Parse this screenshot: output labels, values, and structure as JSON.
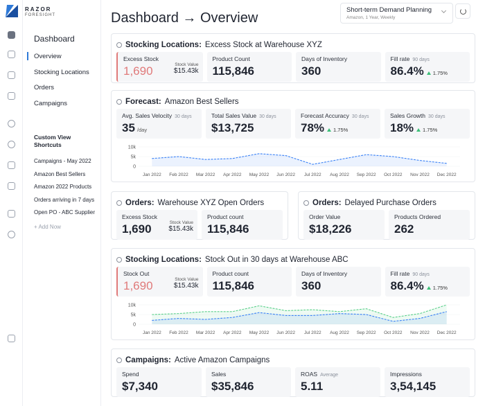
{
  "brand": {
    "name": "RAZOR",
    "sub": "FORESIGHT"
  },
  "nav": {
    "title": "Dashboard",
    "items": [
      "Overview",
      "Stocking Locations",
      "Orders",
      "Campaigns"
    ],
    "active": 0,
    "custom_title": "Custom View Shortcuts",
    "shortcuts": [
      "Campaigns - May 2022",
      "Amazon Best Sellers",
      "Amazon 2022 Products",
      "Orders arriving in 7 days",
      "Open PO - ABC Supplier"
    ],
    "add": "+ Add Now"
  },
  "header": {
    "title": "Dashboard → Overview",
    "selector": {
      "title": "Short-term Demand Planning",
      "subtitle": "Amazon, 1 Year, Weekly"
    }
  },
  "sections": [
    {
      "heading": "Stocking Locations:",
      "subheading": "Excess Stock at Warehouse XYZ",
      "cards": [
        {
          "label": "Excess Stock",
          "value": "1,690",
          "alert": true,
          "side_label": "Stock Value",
          "side_value": "$15.43k"
        },
        {
          "label": "Product Count",
          "value": "115,846"
        },
        {
          "label": "Days of Inventory",
          "value": "360"
        },
        {
          "label": "Fill rate",
          "note": "90 days",
          "value": "86.4%",
          "delta": "1.75%"
        }
      ]
    },
    {
      "heading": "Forecast:",
      "subheading": "Amazon Best Sellers",
      "cards": [
        {
          "label": "Avg. Sales Velocity",
          "note": "30 days",
          "value": "35",
          "unit": "/day"
        },
        {
          "label": "Total Sales Value",
          "note": "30 days",
          "value": "$13,725"
        },
        {
          "label": "Forecast Accuracy",
          "note": "30 days",
          "value": "78%",
          "delta": "1.75%"
        },
        {
          "label": "Sales Growth",
          "note": "30 days",
          "value": "18%",
          "delta": "1.75%"
        }
      ],
      "chart": {
        "type": "line",
        "categories": [
          "Jan 2022",
          "Feb 2022",
          "Mar 2022",
          "Apr 2022",
          "May 2022",
          "Jun 2022",
          "Jul 2022",
          "Aug 2022",
          "Sep 2022",
          "Oct 2022",
          "Nov 2022",
          "Dec 2022"
        ],
        "series": [
          {
            "color": "#3b82f6",
            "values": [
              4000,
              5000,
              3500,
              4000,
              6500,
              5500,
              1000,
              3500,
              6000,
              5000,
              3000,
              1500
            ]
          }
        ],
        "ylim": [
          0,
          10000
        ],
        "yticks": [
          0,
          {
            "value": 5000,
            "label": "5k"
          },
          {
            "value": 10000,
            "label": "10k"
          }
        ]
      }
    },
    {
      "heading": "Orders:",
      "subheading": "Warehouse XYZ Open Orders",
      "cards": [
        {
          "label": "Excess Stock",
          "value": "1,690",
          "side_label": "Stock Value",
          "side_value": "$15.43k"
        },
        {
          "label": "Product count",
          "value": "115,846"
        }
      ]
    },
    {
      "heading": "Orders:",
      "subheading": "Delayed Purchase Orders",
      "cards": [
        {
          "label": "Order Value",
          "value": "$18,226"
        },
        {
          "label": "Products Ordered",
          "value": "262"
        }
      ]
    },
    {
      "heading": "Stocking Locations:",
      "subheading": "Stock Out in 30 days at Warehouse ABC",
      "cards": [
        {
          "label": "Stock Out",
          "value": "1,690",
          "alert": true,
          "side_label": "Stock Value",
          "side_value": "$15.43k"
        },
        {
          "label": "Product count",
          "value": "115,846"
        },
        {
          "label": "Days of Inventory",
          "value": "360"
        },
        {
          "label": "Fill rate",
          "note": "90 days",
          "value": "86.4%",
          "delta": "1.75%"
        }
      ],
      "chart": {
        "type": "line",
        "categories": [
          "Jan 2022",
          "Feb 2022",
          "Mar 2022",
          "Apr 2022",
          "May 2022",
          "Jun 2022",
          "Jul 2022",
          "Aug 2022",
          "Sep 2022",
          "Oct 2022",
          "Nov 2022",
          "Dec 2022"
        ],
        "series": [
          {
            "color": "#5ad08a",
            "values": [
              5000,
              5500,
              6500,
              6500,
              9500,
              7000,
              7500,
              6500,
              8000,
              3500,
              5500,
              10000
            ]
          },
          {
            "color": "#3b82f6",
            "values": [
              2000,
              3000,
              2500,
              3500,
              6000,
              4500,
              4500,
              5500,
              5000,
              1500,
              3000,
              6500
            ]
          }
        ],
        "ylim": [
          0,
          10000
        ],
        "yticks": [
          0,
          {
            "value": 5000,
            "label": "5k"
          },
          {
            "value": 10000,
            "label": "10k"
          }
        ]
      }
    },
    {
      "heading": "Campaigns:",
      "subheading": "Active Amazon Campaigns",
      "cards": [
        {
          "label": "Spend",
          "value": "$7,340"
        },
        {
          "label": "Sales",
          "value": "$35,846"
        },
        {
          "label": "ROAS",
          "note": "Average",
          "value": "5.11"
        },
        {
          "label": "Impressions",
          "value": "3,54,145"
        }
      ]
    }
  ]
}
